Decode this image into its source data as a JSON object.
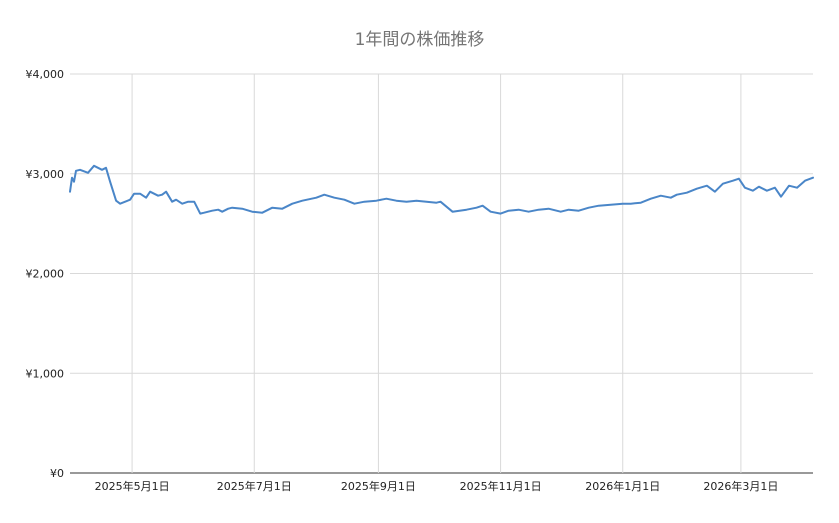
{
  "chart_data": {
    "type": "line",
    "title": "1年間の株価推移",
    "xlabel": "",
    "ylabel": "",
    "ylim": [
      0,
      4000
    ],
    "y_ticks": [
      {
        "value": 0,
        "label": "¥0"
      },
      {
        "value": 1000,
        "label": "¥1,000"
      },
      {
        "value": 2000,
        "label": "¥2,000"
      },
      {
        "value": 3000,
        "label": "¥3,000"
      },
      {
        "value": 4000,
        "label": "¥4,000"
      }
    ],
    "xlim": [
      "2025-03-31",
      "2026-04-06"
    ],
    "x_ticks": [
      {
        "date": "2025-05-01",
        "label": "2025年5月1日"
      },
      {
        "date": "2025-07-01",
        "label": "2025年7月1日"
      },
      {
        "date": "2025-09-01",
        "label": "2025年9月1日"
      },
      {
        "date": "2025-11-01",
        "label": "2025年11月1日"
      },
      {
        "date": "2026-01-01",
        "label": "2026年1月1日"
      },
      {
        "date": "2026-03-01",
        "label": "2026年3月1日"
      }
    ],
    "grid": true,
    "legend": "none",
    "colors": {
      "line": "#4a86c8",
      "grid": "#d9d9d9",
      "title": "#757575",
      "label": "#222222"
    },
    "series": [
      {
        "x": [
          "2025-03-31",
          "2025-04-01",
          "2025-04-02",
          "2025-04-03",
          "2025-04-05",
          "2025-04-09",
          "2025-04-12",
          "2025-04-16",
          "2025-04-18",
          "2025-04-20",
          "2025-04-23",
          "2025-04-25",
          "2025-04-30",
          "2025-05-02",
          "2025-05-05",
          "2025-05-08",
          "2025-05-10",
          "2025-05-14",
          "2025-05-16",
          "2025-05-18",
          "2025-05-21",
          "2025-05-23",
          "2025-05-26",
          "2025-05-29",
          "2025-06-01",
          "2025-06-04",
          "2025-06-06",
          "2025-06-10",
          "2025-06-13",
          "2025-06-15",
          "2025-06-18",
          "2025-06-20",
          "2025-06-25",
          "2025-06-30",
          "2025-07-05",
          "2025-07-10",
          "2025-07-15",
          "2025-07-20",
          "2025-07-25",
          "2025-08-01",
          "2025-08-05",
          "2025-08-10",
          "2025-08-15",
          "2025-08-20",
          "2025-08-25",
          "2025-08-31",
          "2025-09-05",
          "2025-09-10",
          "2025-09-15",
          "2025-09-20",
          "2025-09-25",
          "2025-09-30",
          "2025-10-02",
          "2025-10-08",
          "2025-10-15",
          "2025-10-20",
          "2025-10-23",
          "2025-10-27",
          "2025-11-01",
          "2025-11-05",
          "2025-11-10",
          "2025-11-15",
          "2025-11-20",
          "2025-11-25",
          "2025-12-01",
          "2025-12-05",
          "2025-12-10",
          "2025-12-15",
          "2025-12-20",
          "2026-01-01",
          "2026-01-05",
          "2026-01-10",
          "2026-01-15",
          "2026-01-20",
          "2026-01-25",
          "2026-01-28",
          "2026-02-02",
          "2026-02-07",
          "2026-02-12",
          "2026-02-16",
          "2026-02-20",
          "2026-02-25",
          "2026-02-28",
          "2026-03-03",
          "2026-03-07",
          "2026-03-10",
          "2026-03-14",
          "2026-03-18",
          "2026-03-21",
          "2026-03-25",
          "2026-03-29",
          "2026-04-02",
          "2026-04-06"
        ],
        "y": [
          2820,
          2960,
          2920,
          3030,
          3040,
          3010,
          3080,
          3040,
          3060,
          2920,
          2730,
          2700,
          2740,
          2800,
          2800,
          2760,
          2820,
          2780,
          2790,
          2820,
          2720,
          2740,
          2700,
          2720,
          2720,
          2600,
          2610,
          2630,
          2640,
          2620,
          2650,
          2660,
          2650,
          2620,
          2610,
          2660,
          2650,
          2700,
          2730,
          2760,
          2790,
          2760,
          2740,
          2700,
          2720,
          2730,
          2750,
          2730,
          2720,
          2730,
          2720,
          2710,
          2720,
          2620,
          2640,
          2660,
          2680,
          2620,
          2600,
          2630,
          2640,
          2620,
          2640,
          2650,
          2620,
          2640,
          2630,
          2660,
          2680,
          2700,
          2700,
          2710,
          2750,
          2780,
          2760,
          2790,
          2810,
          2850,
          2880,
          2820,
          2900,
          2930,
          2950,
          2860,
          2830,
          2870,
          2830,
          2860,
          2770,
          2880,
          2860,
          2930,
          2960
        ]
      }
    ]
  }
}
